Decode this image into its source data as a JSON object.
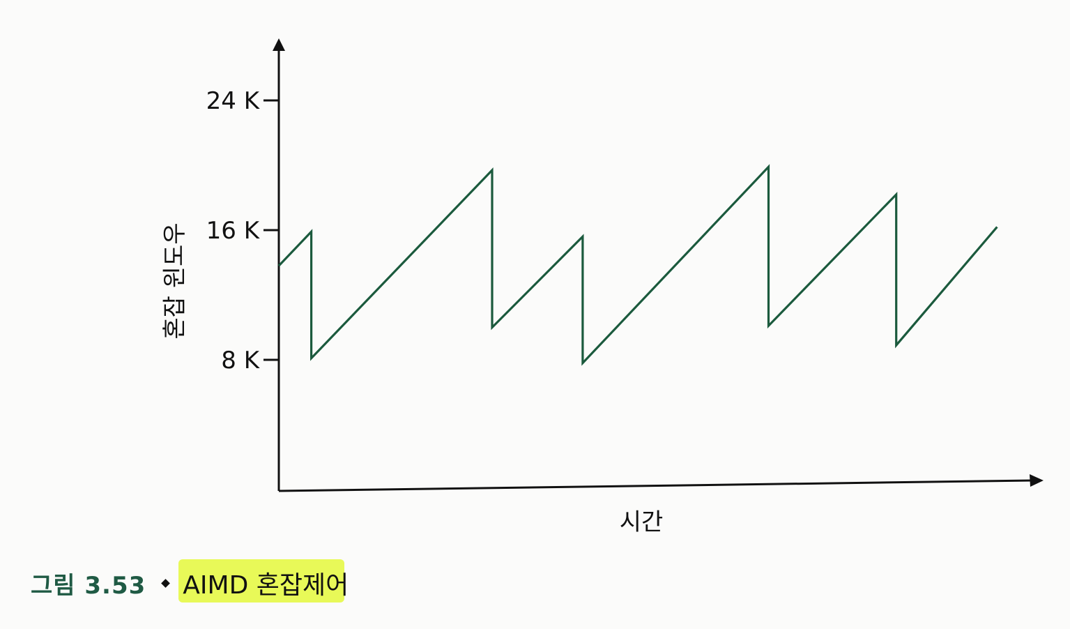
{
  "chart_data": {
    "type": "line",
    "xlabel": "시간",
    "ylabel": "혼잡 윈도우",
    "y_ticks": [
      "8 K",
      "16 K",
      "24 K"
    ],
    "y_tick_values": [
      8,
      16,
      24
    ],
    "ylim": [
      0,
      28
    ],
    "grid": false,
    "series": [
      {
        "color": "#1b5a3d",
        "x": [
          0,
          1.04,
          1.04,
          6.83,
          6.83,
          9.73,
          9.73,
          15.68,
          15.68,
          19.77,
          19.77,
          23.0
        ],
        "y": [
          13.8,
          15.9,
          8.1,
          19.7,
          10.0,
          15.6,
          7.8,
          19.9,
          10.1,
          18.2,
          8.9,
          16.2
        ]
      }
    ]
  },
  "caption": {
    "number": "그림 3.53",
    "title": "AIMD 혼잡제어",
    "highlight_color": "#e6f84a",
    "number_color": "#1f5a44"
  }
}
